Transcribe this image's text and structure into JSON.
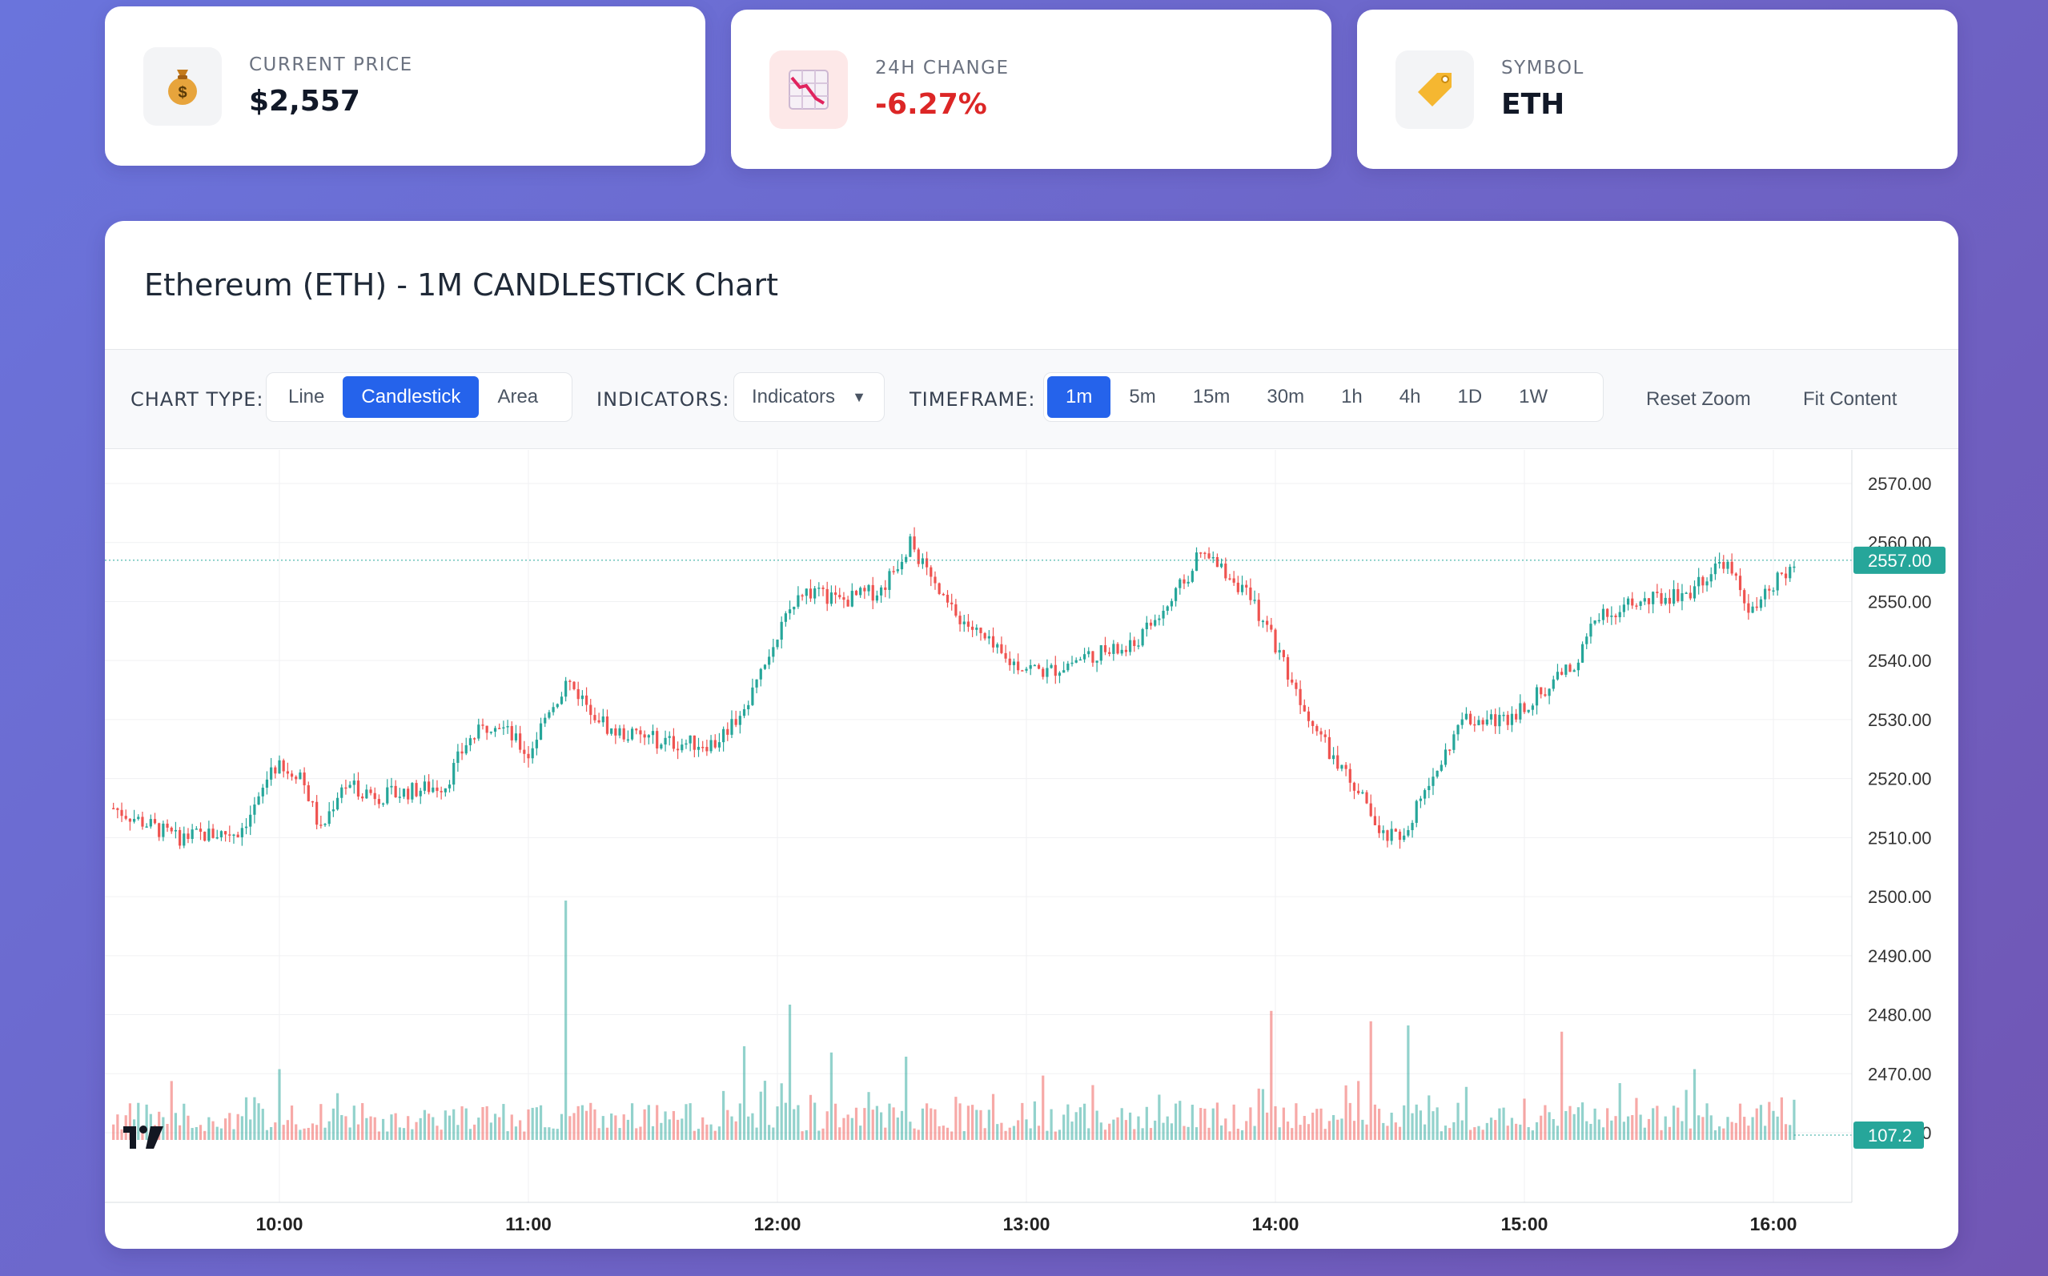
{
  "stats": [
    {
      "label": "CURRENT PRICE",
      "value": "$2,557",
      "icon": "money-bag-icon"
    },
    {
      "label": "24H CHANGE",
      "value": "-6.27%",
      "icon": "chart-decreasing-icon"
    },
    {
      "label": "SYMBOL",
      "value": "ETH",
      "icon": "label-tag-icon"
    }
  ],
  "chart_title": "Ethereum (ETH) - 1M CANDLESTICK Chart",
  "toolbar": {
    "chart_type_label": "CHART TYPE:",
    "chart_types": [
      "Line",
      "Candlestick",
      "Area"
    ],
    "chart_type_active": "Candlestick",
    "indicators_label": "INDICATORS:",
    "indicators_value": "Indicators",
    "timeframe_label": "TIMEFRAME:",
    "timeframes": [
      "1m",
      "5m",
      "15m",
      "30m",
      "1h",
      "4h",
      "1D",
      "1W"
    ],
    "timeframe_active": "1m",
    "reset_zoom": "Reset Zoom",
    "fit_content": "Fit Content"
  },
  "colors": {
    "up": "#26a69a",
    "down": "#ef5350",
    "accent": "#2563eb",
    "negative": "#dc2626"
  },
  "chart_data": {
    "type": "candlestick",
    "x_ticks": [
      "10:00",
      "11:00",
      "12:00",
      "13:00",
      "14:00",
      "15:00",
      "16:00"
    ],
    "y_ticks": [
      2570,
      2560,
      2550,
      2540,
      2530,
      2520,
      2510,
      2500,
      2490,
      2480,
      2470,
      2460
    ],
    "ylim": [
      2457,
      2575
    ],
    "last_price_label": "2557.00",
    "last_volume_label": "107.2",
    "close_path": [
      [
        "09:20",
        2515
      ],
      [
        "09:35",
        2510
      ],
      [
        "09:50",
        2511
      ],
      [
        "09:55",
        2516
      ],
      [
        "09:58",
        2522
      ],
      [
        "10:05",
        2521
      ],
      [
        "10:10",
        2511
      ],
      [
        "10:15",
        2519
      ],
      [
        "10:25",
        2517
      ],
      [
        "10:40",
        2519
      ],
      [
        "10:45",
        2526
      ],
      [
        "10:52",
        2530
      ],
      [
        "11:00",
        2524
      ],
      [
        "11:05",
        2532
      ],
      [
        "11:10",
        2536
      ],
      [
        "11:15",
        2532
      ],
      [
        "11:20",
        2528
      ],
      [
        "11:35",
        2526
      ],
      [
        "11:45",
        2526
      ],
      [
        "11:52",
        2532
      ],
      [
        "12:00",
        2544
      ],
      [
        "12:05",
        2552
      ],
      [
        "12:15",
        2550
      ],
      [
        "12:25",
        2552
      ],
      [
        "12:32",
        2560
      ],
      [
        "12:40",
        2550
      ],
      [
        "12:55",
        2540
      ],
      [
        "13:05",
        2538
      ],
      [
        "13:15",
        2541
      ],
      [
        "13:25",
        2542
      ],
      [
        "13:35",
        2550
      ],
      [
        "13:42",
        2558
      ],
      [
        "13:50",
        2554
      ],
      [
        "13:58",
        2546
      ],
      [
        "14:05",
        2535
      ],
      [
        "14:15",
        2522
      ],
      [
        "14:22",
        2516
      ],
      [
        "14:25",
        2510
      ],
      [
        "14:30",
        2510
      ],
      [
        "14:38",
        2520
      ],
      [
        "14:45",
        2530
      ],
      [
        "14:55",
        2530
      ],
      [
        "15:05",
        2535
      ],
      [
        "15:12",
        2539
      ],
      [
        "15:18",
        2548
      ],
      [
        "15:30",
        2550
      ],
      [
        "15:40",
        2552
      ],
      [
        "15:48",
        2557
      ],
      [
        "15:55",
        2548
      ],
      [
        "16:05",
        2557
      ]
    ],
    "volume_spikes": [
      [
        "10:00",
        34
      ],
      [
        "11:09",
        115
      ],
      [
        "11:52",
        45
      ],
      [
        "12:03",
        65
      ],
      [
        "12:13",
        42
      ],
      [
        "12:31",
        40
      ],
      [
        "13:59",
        62
      ],
      [
        "14:23",
        57
      ],
      [
        "14:32",
        55
      ],
      [
        "15:09",
        52
      ],
      [
        "15:41",
        34
      ]
    ]
  }
}
